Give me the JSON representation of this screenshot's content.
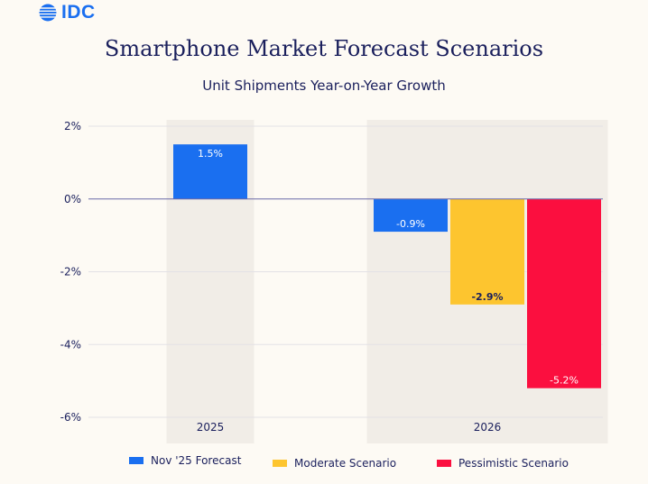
{
  "header": {
    "logo_text": "IDC",
    "logo_icon": "globe-icon",
    "title": "Smartphone Market Forecast Scenarios",
    "subtitle": "Unit Shipments Year-on-Year Growth"
  },
  "colors": {
    "nov25": "#1a6ff0",
    "moderate": "#fdc52f",
    "pessimistic": "#fb0f3f",
    "band": "#f1ede7",
    "text": "#1a1f5c",
    "grid": "#e3e1e6",
    "zero": "#6a6aa8"
  },
  "chart_data": {
    "type": "bar",
    "categories": [
      "2025",
      "2026"
    ],
    "y_tick_labels": [
      "2%",
      "0%",
      "-2%",
      "-4%",
      "-6%"
    ],
    "y_ticks": [
      2,
      0,
      -2,
      -4,
      -6
    ],
    "ylim": [
      -6,
      2
    ],
    "grid": true,
    "legend_position": "bottom",
    "series": [
      {
        "name": "Nov '25 Forecast",
        "values": [
          1.5,
          -0.9
        ],
        "labels": [
          "1.5%",
          "-0.9%"
        ]
      },
      {
        "name": "Moderate Scenario",
        "values": [
          null,
          -2.9
        ],
        "labels": [
          "",
          "-2.9%"
        ]
      },
      {
        "name": "Pessimistic Scenario",
        "values": [
          null,
          -5.2
        ],
        "labels": [
          "",
          "-5.2%"
        ]
      }
    ]
  }
}
